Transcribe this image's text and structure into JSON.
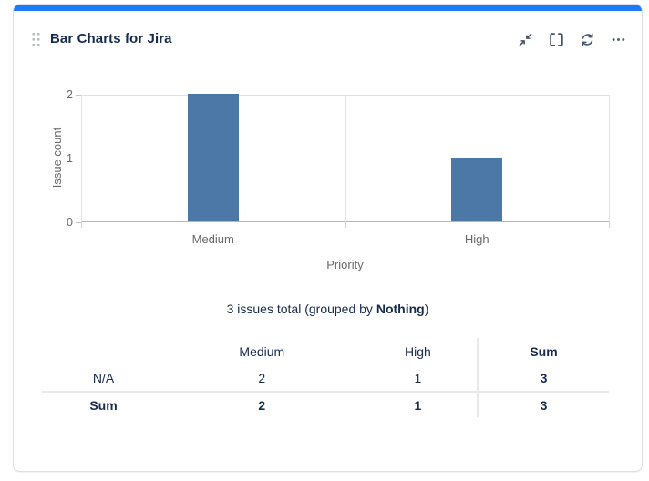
{
  "widget": {
    "title": "Bar Charts for Jira",
    "accent_color": "#1D7AFC",
    "toolbar_icons": [
      "collapse-icon",
      "fullscreen-icon",
      "refresh-icon",
      "more-options-icon"
    ]
  },
  "chart_data": {
    "type": "bar",
    "categories": [
      "Medium",
      "High"
    ],
    "values": [
      2,
      1
    ],
    "title": "",
    "xlabel": "Priority",
    "ylabel": "Issue count",
    "ylim": [
      0,
      2
    ],
    "yticks": [
      0,
      1,
      2
    ],
    "bar_color": "#4C78A8",
    "grid": true,
    "legend": false
  },
  "summary": {
    "text": "3 issues total (grouped by Nothing)",
    "prefix": "3 issues total (grouped by ",
    "bold_word": "Nothing",
    "suffix": ")"
  },
  "table": {
    "columns": [
      "",
      "Medium",
      "High",
      "Sum"
    ],
    "rows": [
      {
        "label": "N/A",
        "values": [
          "2",
          "1",
          "3"
        ],
        "is_sum_row": false
      },
      {
        "label": "Sum",
        "values": [
          "2",
          "1",
          "3"
        ],
        "is_sum_row": true
      }
    ]
  }
}
